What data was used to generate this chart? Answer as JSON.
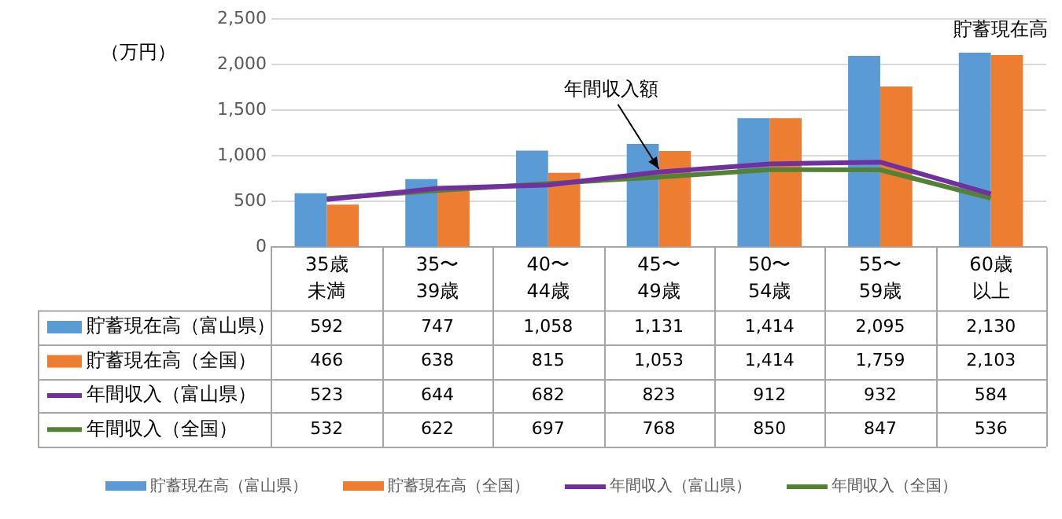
{
  "chart_data": {
    "type": "bar",
    "ylabel": "（万円）",
    "categories": [
      "35歳未満",
      "35〜39歳",
      "40〜44歳",
      "45〜49歳",
      "50〜54歳",
      "55〜59歳",
      "60歳以上"
    ],
    "series": [
      {
        "name": "貯蓄現在高（富山県）",
        "color": "#5b9bd5",
        "values": [
          592,
          747,
          1058,
          1131,
          1414,
          2095,
          2130
        ],
        "value_labels": [
          "592",
          "747",
          "1,058",
          "1,131",
          "1,414",
          "2,095",
          "2,130"
        ]
      },
      {
        "name": "貯蓄現在高（全国）",
        "color": "#ed7d31",
        "values": [
          466,
          638,
          815,
          1053,
          1414,
          1759,
          2103
        ],
        "value_labels": [
          "466",
          "638",
          "815",
          "1,053",
          "1,414",
          "1,759",
          "2,103"
        ]
      },
      {
        "name": "年間収入（富山県）",
        "type": "line",
        "color": "#7030a0",
        "values": [
          523,
          644,
          682,
          823,
          912,
          932,
          584
        ],
        "value_labels": [
          "523",
          "644",
          "682",
          "823",
          "912",
          "932",
          "584"
        ]
      },
      {
        "name": "年間収入（全国）",
        "type": "line",
        "color": "#548235",
        "values": [
          532,
          622,
          697,
          768,
          850,
          847,
          536
        ],
        "value_labels": [
          "532",
          "622",
          "697",
          "768",
          "850",
          "847",
          "536"
        ]
      }
    ],
    "ylim": [
      0,
      2500
    ],
    "yticks": [
      0,
      500,
      {
        "value": 1000,
        "label": "1,000"
      },
      {
        "value": 1500,
        "label": "1,500"
      },
      {
        "value": 2000,
        "label": "2,000"
      },
      {
        "value": 2500,
        "label": "2,500"
      }
    ],
    "grid": "y",
    "legend": "bottom",
    "marker": "none",
    "line_style": "solid",
    "annotations": [
      {
        "text": "貯蓄現在高",
        "x": "60歳以上",
        "y": 2130
      },
      {
        "text": "年間収入額",
        "x": "45〜49歳",
        "y": 823
      }
    ]
  }
}
